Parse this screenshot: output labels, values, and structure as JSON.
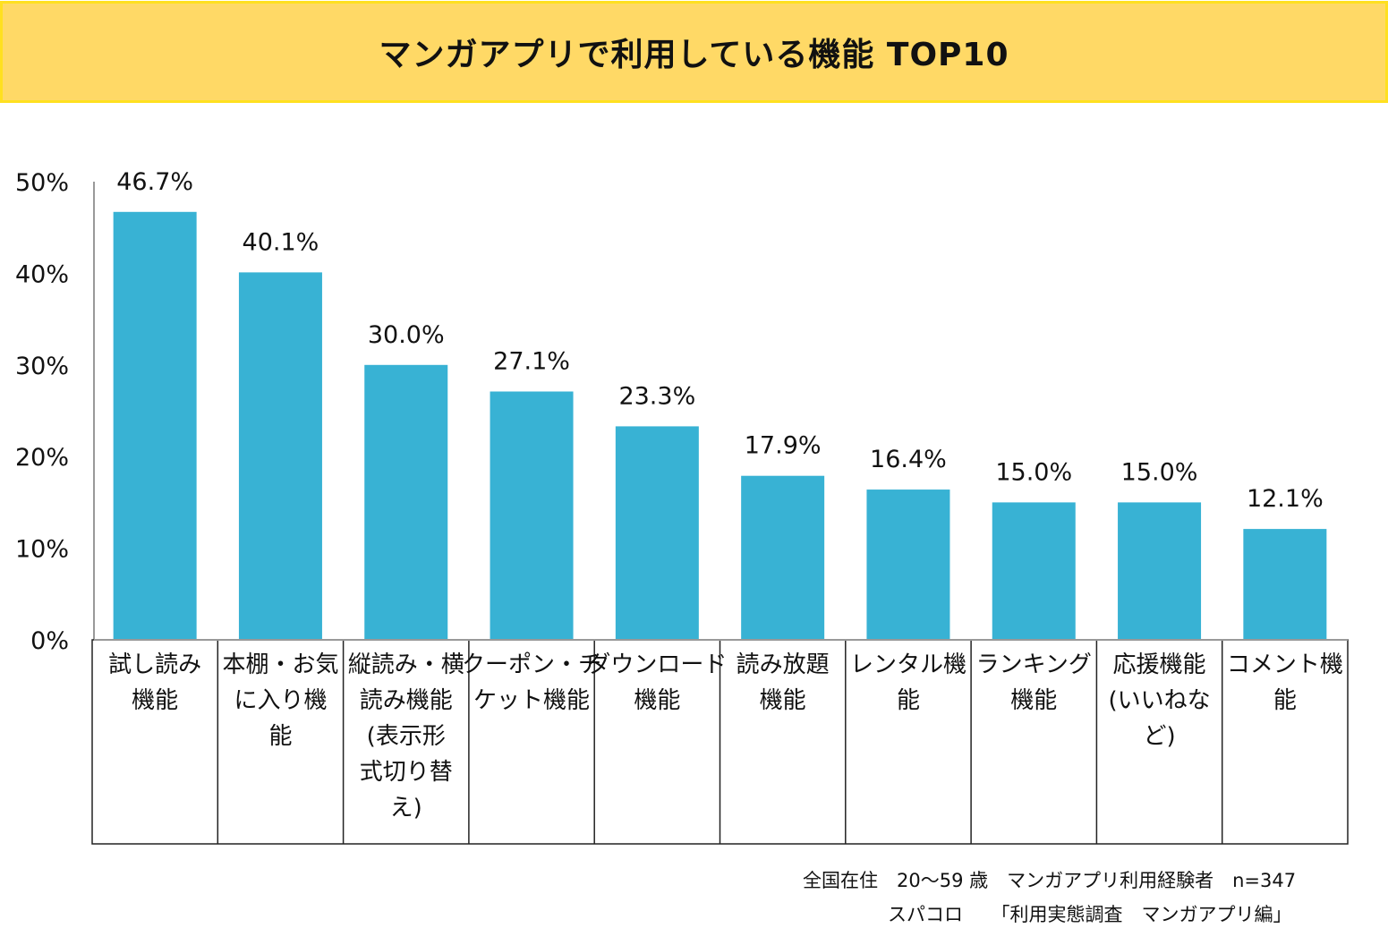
{
  "chart_data": {
    "type": "bar",
    "title": "マンガアプリで利用している機能 TOP10",
    "categories": [
      [
        "試し読み",
        "機能"
      ],
      [
        "本棚・お気",
        "に入り機",
        "能"
      ],
      [
        "縦読み・横",
        "読み機能",
        "(表示形",
        "式切り替",
        "え)"
      ],
      [
        "クーポン・チ",
        "ケット機能"
      ],
      [
        "ダウンロード",
        "機能"
      ],
      [
        "読み放題",
        "機能"
      ],
      [
        "レンタル機",
        "能"
      ],
      [
        "ランキング",
        "機能"
      ],
      [
        "応援機能",
        "(いいねな",
        "ど)"
      ],
      [
        "コメント機",
        "能"
      ]
    ],
    "values": [
      46.7,
      40.1,
      30.0,
      27.1,
      23.3,
      17.9,
      16.4,
      15.0,
      15.0,
      12.1
    ],
    "value_labels": [
      "46.7%",
      "40.1%",
      "30.0%",
      "27.1%",
      "23.3%",
      "17.9%",
      "16.4%",
      "15.0%",
      "15.0%",
      "12.1%"
    ],
    "ylim": [
      0,
      50
    ],
    "yticks": [
      "0%",
      "10%",
      "20%",
      "30%",
      "40%",
      "50%"
    ],
    "xlabel": "",
    "ylabel": "",
    "grid": false,
    "bar_color": "#38B2D4",
    "header_color": "#FFD966"
  },
  "notes": {
    "line1": "全国在住　20～59 歳　マンガアプリ利用経験者　n=347",
    "line2": "スパコロ　　「利用実態調査　マンガアプリ編」"
  }
}
